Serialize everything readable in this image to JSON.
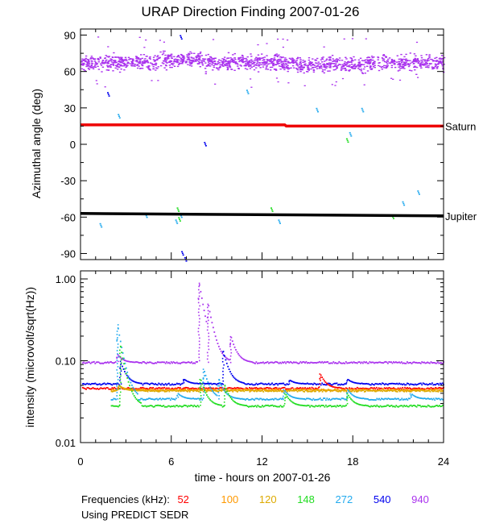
{
  "title": "URAP Direction Finding  2007-01-26",
  "footer": {
    "frequencies_label": "Frequencies (kHz):",
    "source_label": "Using PREDICT SEDR"
  },
  "colors": {
    "f52": "#ff0000",
    "f100": "#ff9900",
    "f120": "#ddaa00",
    "f148": "#22dd22",
    "f272": "#22aaee",
    "f540": "#0000ee",
    "f940": "#aa33ee",
    "saturn": "#ee0000",
    "jupiter": "#000000"
  },
  "chart_data": [
    {
      "type": "scatter",
      "title": "URAP Direction Finding  2007-01-26",
      "ylabel": "Azimuthal angle (deg)",
      "xlabel": "",
      "xlim": [
        0,
        24
      ],
      "ylim": [
        -95,
        95
      ],
      "yticks": [
        90,
        60,
        30,
        0,
        -30,
        -60,
        -90
      ],
      "xticks": [
        0,
        6,
        12,
        18,
        24
      ],
      "series": [
        {
          "name": "940",
          "description": "dense band",
          "center": 68,
          "spread": 7
        },
        {
          "name": "272",
          "description": "scattered points",
          "points": [
            [
              1.3,
              -65
            ],
            [
              2.5,
              25
            ],
            [
              4.3,
              -57
            ],
            [
              6.3,
              -62
            ],
            [
              6.6,
              -57
            ],
            [
              11.0,
              45
            ],
            [
              13.1,
              -62
            ],
            [
              15.6,
              30
            ],
            [
              17.8,
              10
            ],
            [
              18.6,
              30
            ],
            [
              21.3,
              -47
            ],
            [
              22.3,
              -38
            ]
          ]
        },
        {
          "name": "148",
          "description": "scattered points",
          "points": [
            [
              6.4,
              -52
            ],
            [
              6.5,
              -60
            ],
            [
              12.6,
              -52
            ],
            [
              17.6,
              5
            ],
            [
              20.6,
              -58
            ]
          ]
        },
        {
          "name": "540",
          "description": "scattered points",
          "points": [
            [
              1.8,
              43
            ],
            [
              6.6,
              90
            ],
            [
              6.7,
              -88
            ],
            [
              6.9,
              -93
            ],
            [
              8.2,
              2
            ]
          ]
        }
      ],
      "reference_lines": [
        {
          "label": "Saturn",
          "x": [
            0,
            13.5,
            13.6,
            24
          ],
          "y": [
            16,
            16,
            15,
            15
          ]
        },
        {
          "label": "Jupiter",
          "x": [
            0,
            24
          ],
          "y": [
            -57,
            -59
          ]
        }
      ]
    },
    {
      "type": "line",
      "ylabel": "intensity (microvolt/sqrt(Hz))",
      "xlabel": "time - hours on 2007-01-26",
      "xlim": [
        0,
        24
      ],
      "yscale": "log",
      "ylim": [
        0.01,
        1.0
      ],
      "yticks": [
        "1.00",
        "0.10",
        "0.01"
      ],
      "xticks": [
        "0",
        "6",
        "12",
        "18",
        "24"
      ],
      "series": [
        {
          "name": "940",
          "baseline": 0.095,
          "spikes": [
            [
              2.4,
              0.12
            ],
            [
              7.8,
              0.9
            ],
            [
              8.4,
              0.5
            ],
            [
              9.9,
              0.2
            ]
          ]
        },
        {
          "name": "540",
          "baseline": 0.052,
          "spikes": [
            [
              2.6,
              0.1
            ],
            [
              6.8,
              0.06
            ],
            [
              9.4,
              0.13
            ],
            [
              13.8,
              0.058
            ],
            [
              17.6,
              0.06
            ]
          ]
        },
        {
          "name": "52",
          "baseline": 0.046,
          "spikes": [
            [
              15.8,
              0.07
            ]
          ]
        },
        {
          "name": "100",
          "baseline": 0.044,
          "spikes": [
            [
              2.5,
              0.05
            ],
            [
              20.5,
              0.042
            ]
          ]
        },
        {
          "name": "120",
          "baseline": 0.043,
          "spikes": [
            [
              2.5,
              0.05
            ]
          ]
        },
        {
          "name": "272",
          "baseline": 0.034,
          "spikes": [
            [
              2.4,
              0.28
            ],
            [
              6.4,
              0.04
            ],
            [
              8.1,
              0.08
            ],
            [
              9.1,
              0.06
            ],
            [
              13.4,
              0.045
            ],
            [
              17.6,
              0.045
            ],
            [
              21.8,
              0.04
            ]
          ]
        },
        {
          "name": "148",
          "baseline": 0.028,
          "spikes": [
            [
              2.6,
              0.15
            ],
            [
              7.9,
              0.06
            ],
            [
              9.5,
              0.05
            ],
            [
              13.5,
              0.04
            ],
            [
              17.6,
              0.04
            ]
          ]
        }
      ],
      "legend": [
        "52",
        "100",
        "120",
        "148",
        "272",
        "540",
        "940"
      ]
    }
  ]
}
